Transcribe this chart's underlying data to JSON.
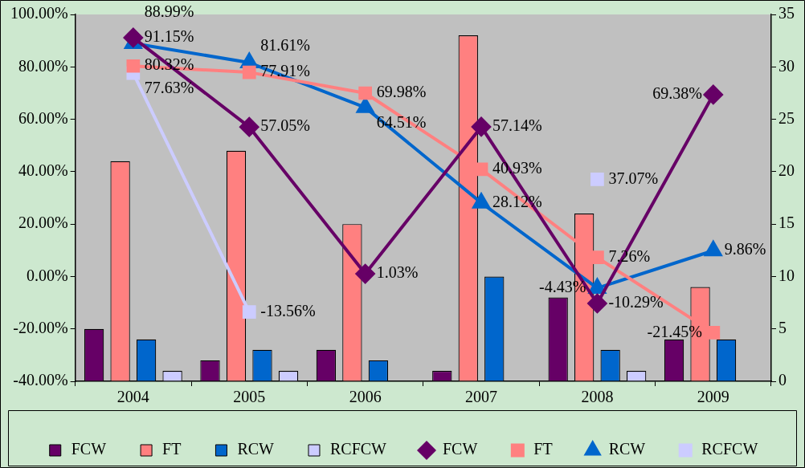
{
  "chart_data": {
    "type": "bar",
    "categories": [
      "2004",
      "2005",
      "2006",
      "2007",
      "2008",
      "2009"
    ],
    "ylim": [
      -40,
      100
    ],
    "yticks": [
      {
        "value": -40,
        "label": "-40.00%"
      },
      {
        "value": -20,
        "label": "-20.00%"
      },
      {
        "value": 0,
        "label": "0.00%"
      },
      {
        "value": 20,
        "label": "20.00%"
      },
      {
        "value": 40,
        "label": "40.00%"
      },
      {
        "value": 60,
        "label": "60.00%"
      },
      {
        "value": 80,
        "label": "80.00%"
      },
      {
        "value": 100,
        "label": "100.00%"
      }
    ],
    "y2lim": [
      0,
      35
    ],
    "y2ticks": [
      0,
      5,
      10,
      15,
      20,
      25,
      30,
      35
    ],
    "legend": "bottom",
    "series": [
      {
        "name": "FCW",
        "axis": "y2",
        "color": "#660066",
        "values": [
          5,
          2,
          3,
          1,
          8,
          4
        ]
      },
      {
        "name": "FT",
        "axis": "y2",
        "color": "#ff8080",
        "values": [
          21,
          22,
          15,
          33,
          16,
          9
        ]
      },
      {
        "name": "RCW",
        "axis": "y2",
        "color": "#0066cc",
        "values": [
          4,
          3,
          2,
          10,
          3,
          4
        ]
      },
      {
        "name": "RCFCW",
        "axis": "y2",
        "color": "#ccccff",
        "values": [
          1,
          1,
          null,
          null,
          1,
          null
        ]
      },
      {
        "name": "FCW",
        "type": "line",
        "marker": "diamond",
        "color": "#660066",
        "values": [
          91.15,
          57.05,
          1.03,
          57.14,
          -10.29,
          69.38
        ],
        "value_labels": [
          "91.15%",
          "57.05%",
          "1.03%",
          "57.14%",
          "-10.29%",
          "69.38%"
        ]
      },
      {
        "name": "FT",
        "type": "line",
        "marker": "square",
        "color": "#ff8080",
        "values": [
          80.32,
          77.91,
          69.98,
          40.93,
          7.26,
          -21.45
        ],
        "value_labels": [
          "80.32%",
          "77.91%",
          "69.98%",
          "40.93%",
          "7.26%",
          "-21.45%"
        ]
      },
      {
        "name": "RCW",
        "type": "line",
        "marker": "triangle",
        "color": "#0066cc",
        "values": [
          88.99,
          81.61,
          64.51,
          28.12,
          -4.43,
          9.86
        ],
        "value_labels": [
          "88.99%",
          "81.61%",
          "64.51%",
          "28.12%",
          "-4.43%",
          "9.86%"
        ]
      },
      {
        "name": "RCFCW",
        "type": "line",
        "marker": "square",
        "color": "#ccccff",
        "values": [
          77.63,
          -13.56,
          null,
          null,
          37.07,
          null
        ],
        "value_labels": [
          "77.63%",
          "-13.56%",
          null,
          null,
          "37.07%",
          null
        ]
      }
    ]
  }
}
